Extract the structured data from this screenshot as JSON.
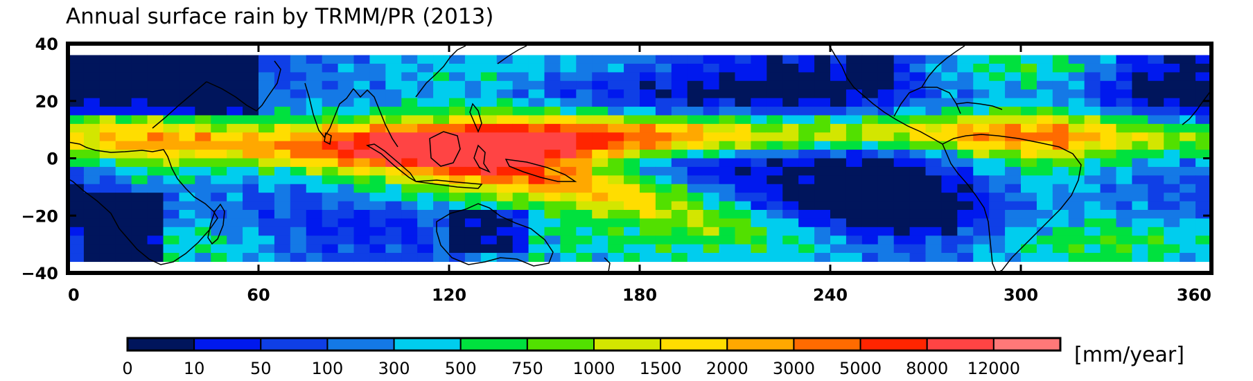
{
  "title": "Annual surface rain by TRMM/PR (2013)",
  "map": {
    "kind": "global-precipitation-map",
    "latitude_range": [
      -40,
      40
    ],
    "data_latitude_range": [
      -36,
      36
    ],
    "longitude_range": [
      0,
      360
    ],
    "x_ticks": [
      "0",
      "60",
      "120",
      "180",
      "240",
      "300",
      "360"
    ],
    "x_tick_values": [
      0,
      60,
      120,
      180,
      240,
      300,
      360
    ],
    "y_ticks": [
      "40",
      "20",
      "0",
      "−20",
      "−40"
    ],
    "y_tick_values": [
      40,
      20,
      0,
      -20,
      -40
    ],
    "features": [
      "coastlines",
      "ITCZ rain band",
      "SPCZ rain band",
      "maritime continent maximum",
      "dry subtropical east Pacific",
      "dry Sahara / Arabia"
    ]
  },
  "colorbar": {
    "labels": [
      "0",
      "10",
      "50",
      "100",
      "300",
      "500",
      "750",
      "1000",
      "1500",
      "2000",
      "3000",
      "5000",
      "8000",
      "12000"
    ],
    "colors": [
      "#00155c",
      "#0019ee",
      "#0f3fe6",
      "#1479e6",
      "#00cdee",
      "#00e13e",
      "#52e000",
      "#d3e600",
      "#ffdd00",
      "#ffa800",
      "#ff6b00",
      "#ff2500",
      "#ff4444",
      "#ff7878"
    ],
    "unit": "[mm/year]"
  }
}
